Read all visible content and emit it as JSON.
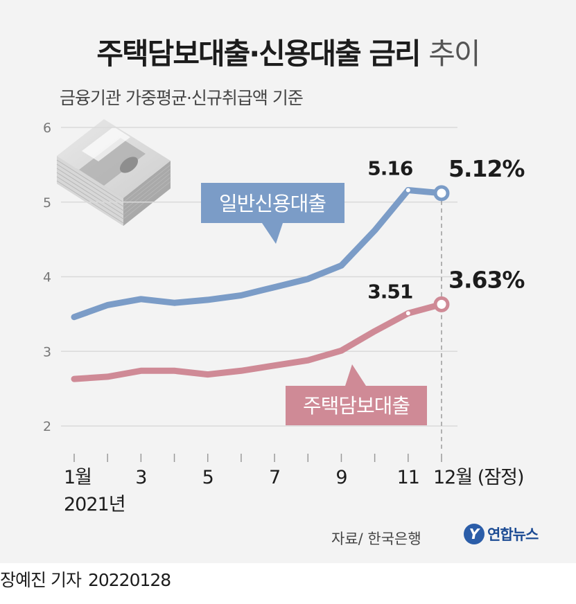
{
  "header": {
    "title_bold": "주택담보대출·신용대출 금리",
    "title_light": "추이",
    "subtitle": "금융기관 가중평균·신규취급액 기준"
  },
  "chart_data": {
    "type": "line",
    "title": "주택담보대출·신용대출 금리 추이",
    "subtitle": "금융기관 가중평균·신규취급액 기준",
    "x": [
      1,
      2,
      3,
      4,
      5,
      6,
      7,
      8,
      9,
      10,
      11,
      12
    ],
    "x_tick_labels": [
      "1월",
      "3",
      "5",
      "7",
      "9",
      "11",
      "12월 (잠정)"
    ],
    "x_tick_positions": [
      1,
      3,
      5,
      7,
      9,
      11,
      12
    ],
    "x_year_label": "2021년",
    "y_ticks": [
      "2",
      "3",
      "4",
      "5",
      "6"
    ],
    "ylim": [
      2,
      6
    ],
    "grid": true,
    "series": [
      {
        "name": "일반신용대출",
        "color": "#7b9cc7",
        "values": [
          3.46,
          3.62,
          3.7,
          3.65,
          3.69,
          3.75,
          3.86,
          3.97,
          4.15,
          4.62,
          5.16,
          5.12
        ],
        "labels": {
          "11": "5.16",
          "12": "5.12%"
        }
      },
      {
        "name": "주택담보대출",
        "color": "#cf8a96",
        "values": [
          2.63,
          2.66,
          2.74,
          2.74,
          2.69,
          2.74,
          2.81,
          2.88,
          3.01,
          3.27,
          3.51,
          3.63
        ],
        "labels": {
          "11": "3.51",
          "12": "3.63%"
        }
      }
    ],
    "legend": [
      "일반신용대출",
      "주택담보대출"
    ]
  },
  "footer": {
    "source": "자료/ 한국은행",
    "logo_text": "연합뉴스",
    "logo_mark": "Y",
    "reporter": "장예진 기자",
    "date": "20220128"
  }
}
